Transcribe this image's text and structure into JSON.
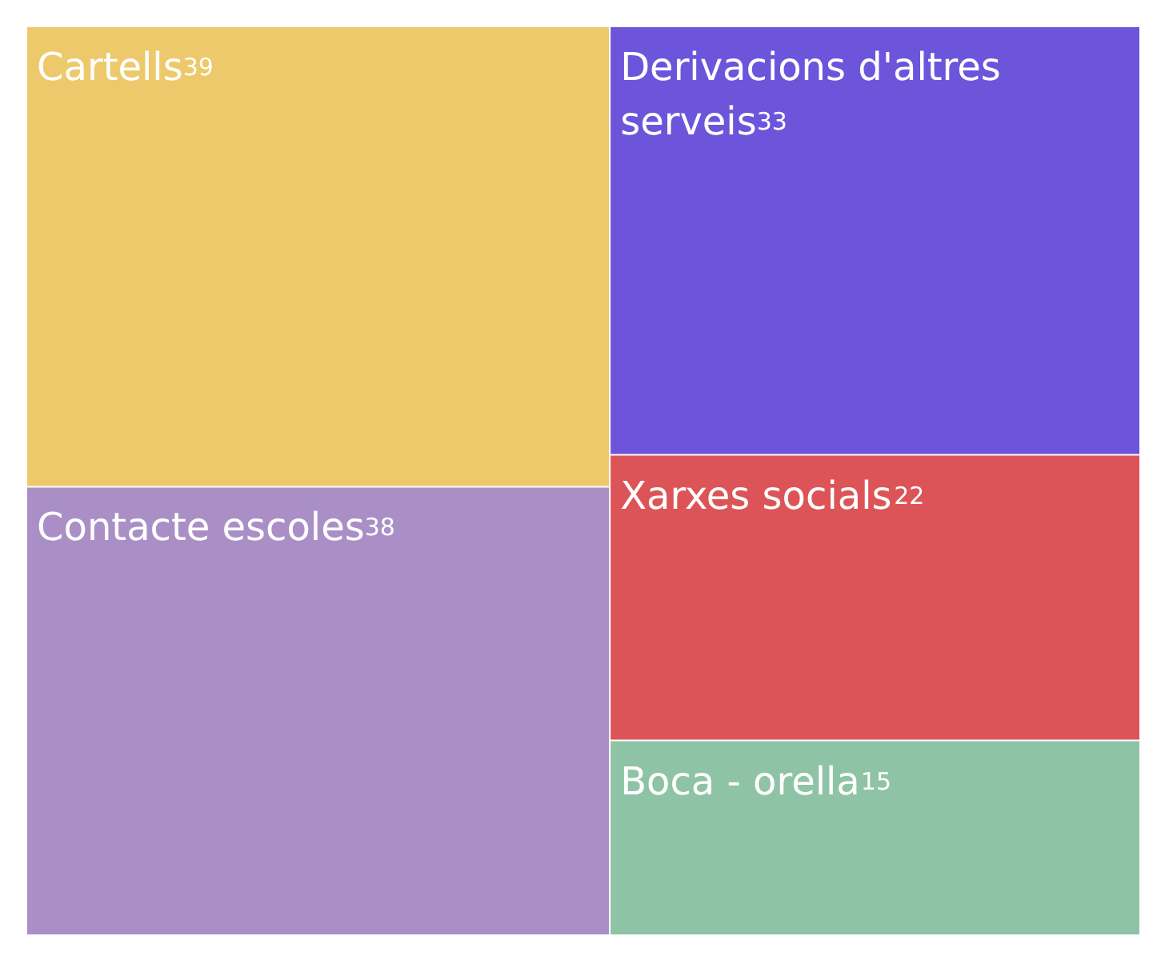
{
  "chart_data": {
    "type": "other",
    "categories": [
      "Cartells",
      "Contacte escoles",
      "Derivacions d'altres serveis",
      "Xarxes socials",
      "Boca - orella"
    ],
    "values": [
      39,
      38,
      33,
      22,
      15
    ],
    "colors": [
      "#edc96b",
      "#a98fc6",
      "#6c55db",
      "#dc5457",
      "#8fc3a6"
    ],
    "data_labels": true
  }
}
